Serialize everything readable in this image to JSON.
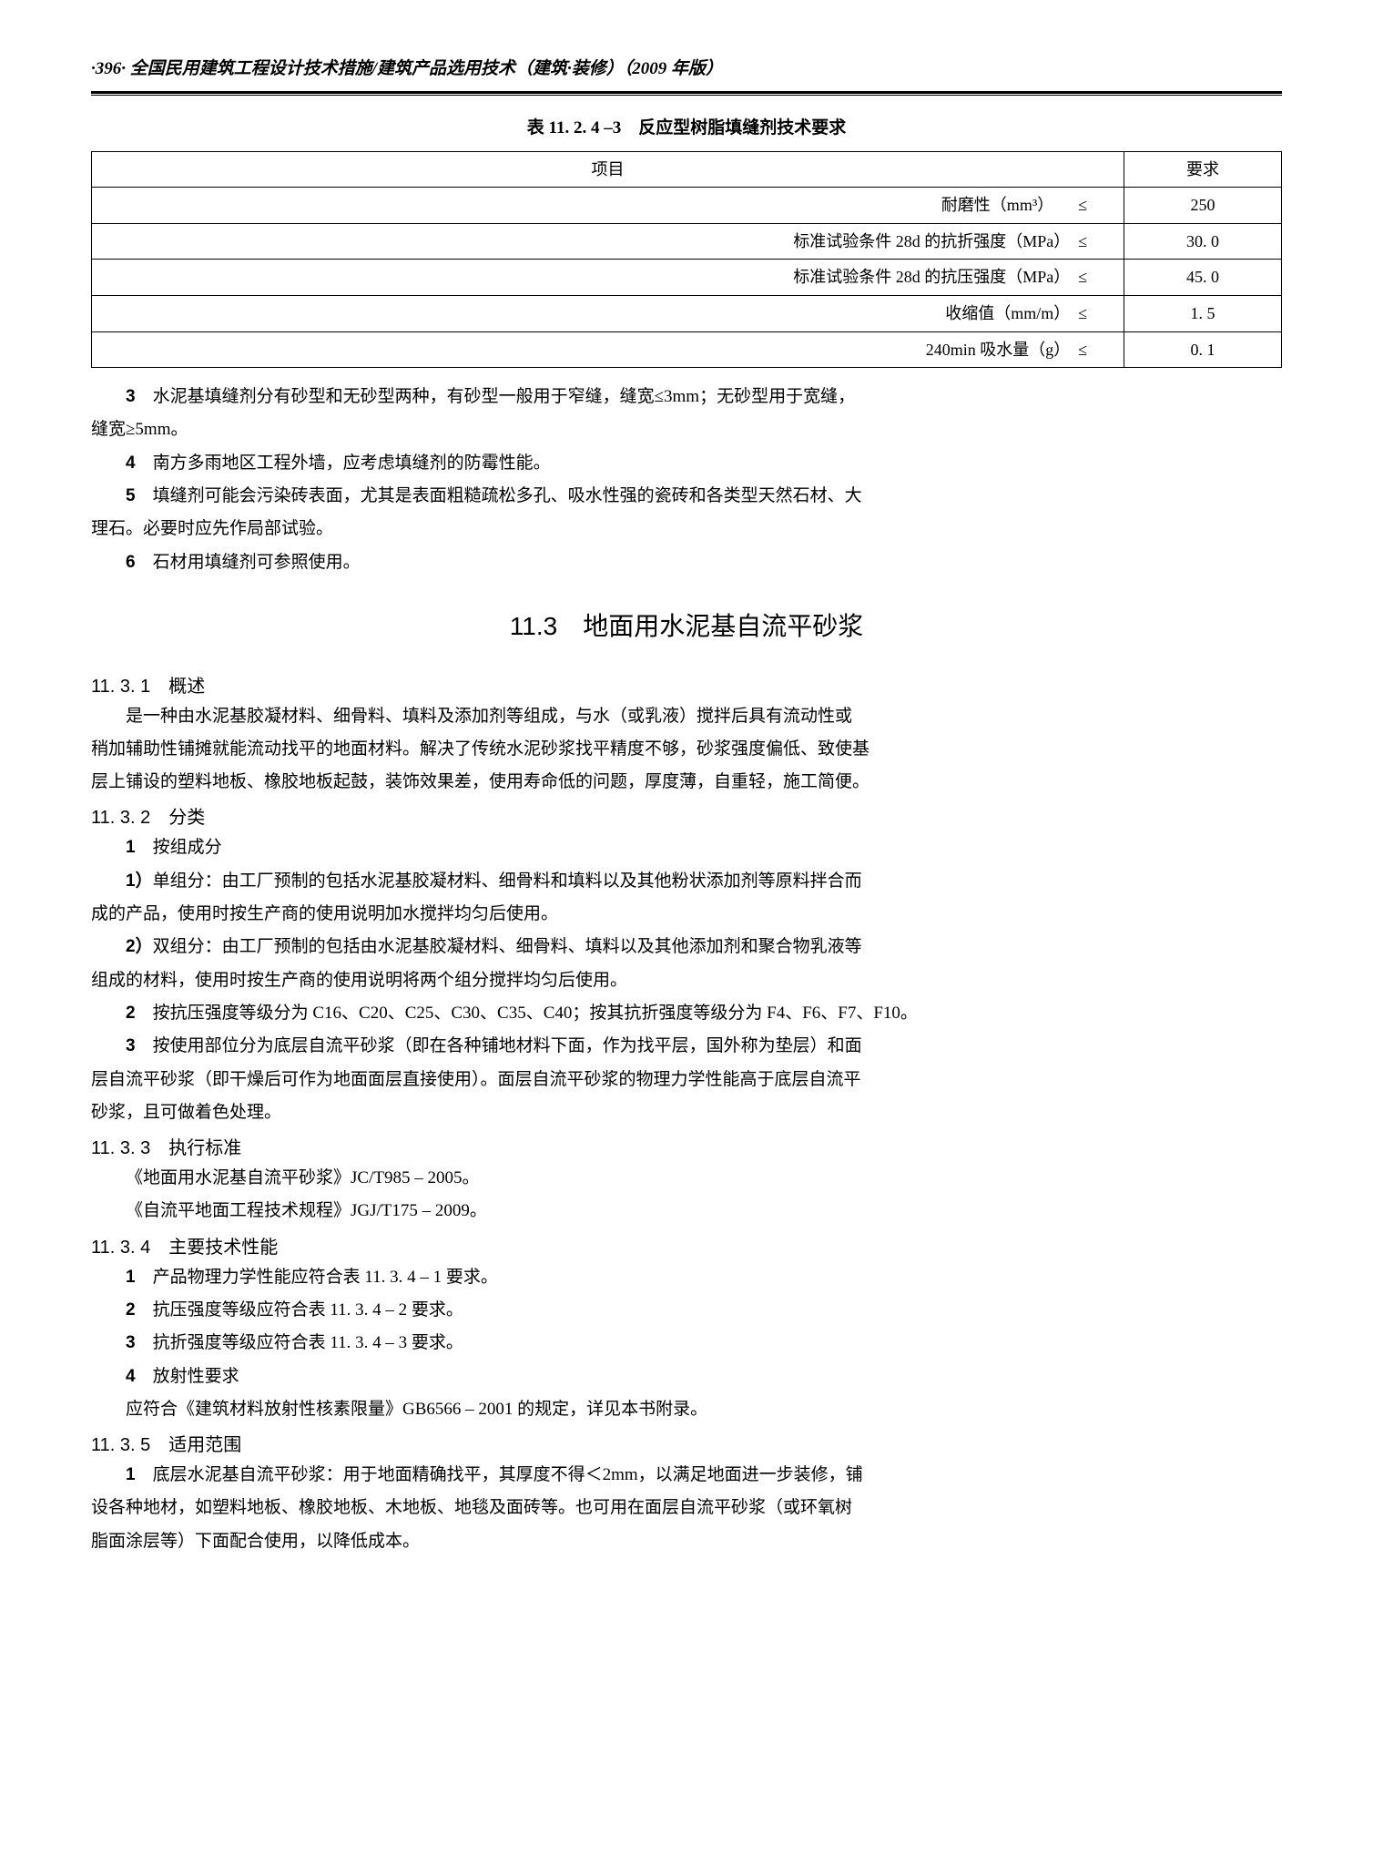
{
  "header": {
    "page_num": "·396·",
    "title": "全国民用建筑工程设计技术措施/建筑产品选用技术（建筑·装修）（2009 年版）"
  },
  "table1": {
    "title": "表 11. 2. 4 –3　反应型树脂填缝剂技术要求",
    "col1": "项目",
    "col2": "要求",
    "rows": [
      {
        "label": "耐磨性（mm³）　　≤",
        "value": "250"
      },
      {
        "label": "标准试验条件 28d 的抗折强度（MPa）　≤",
        "value": "30. 0"
      },
      {
        "label": "标准试验条件 28d 的抗压强度（MPa）　≤",
        "value": "45. 0"
      },
      {
        "label": "收缩值（mm/m）　≤",
        "value": "1. 5"
      },
      {
        "label": "240min 吸水量（g）　≤",
        "value": "0. 1"
      }
    ]
  },
  "paragraphs1": [
    {
      "n": "3",
      "text": "水泥基填缝剂分有砂型和无砂型两种，有砂型一般用于窄缝，缝宽≤3mm；无砂型用于宽缝，"
    },
    {
      "text": "缝宽≥5mm。"
    },
    {
      "n": "4",
      "text": "南方多雨地区工程外墙，应考虑填缝剂的防霉性能。"
    },
    {
      "n": "5",
      "text": "填缝剂可能会污染砖表面，尤其是表面粗糙疏松多孔、吸水性强的瓷砖和各类型天然石材、大"
    },
    {
      "text": "理石。必要时应先作局部试验。"
    },
    {
      "n": "6",
      "text": "石材用填缝剂可参照使用。"
    }
  ],
  "section": {
    "title": "11.3　地面用水泥基自流平砂浆"
  },
  "s1131": {
    "heading": "11. 3. 1　概述",
    "p1": "是一种由水泥基胶凝材料、细骨料、填料及添加剂等组成，与水（或乳液）搅拌后具有流动性或",
    "p2": "稍加辅助性铺摊就能流动找平的地面材料。解决了传统水泥砂浆找平精度不够，砂浆强度偏低、致使基",
    "p3": "层上铺设的塑料地板、橡胶地板起鼓，装饰效果差，使用寿命低的问题，厚度薄，自重轻，施工简便。"
  },
  "s1132": {
    "heading": "11. 3. 2　分类",
    "i1n": "1",
    "i1": "按组成分",
    "i1_1n": "1）",
    "i1_1": "单组分：由工厂预制的包括水泥基胶凝材料、细骨料和填料以及其他粉状添加剂等原料拌合而",
    "i1_1b": "成的产品，使用时按生产商的使用说明加水搅拌均匀后使用。",
    "i1_2n": "2）",
    "i1_2": "双组分：由工厂预制的包括由水泥基胶凝材料、细骨料、填料以及其他添加剂和聚合物乳液等",
    "i1_2b": "组成的材料，使用时按生产商的使用说明将两个组分搅拌均匀后使用。",
    "i2n": "2",
    "i2": "按抗压强度等级分为 C16、C20、C25、C30、C35、C40；按其抗折强度等级分为 F4、F6、F7、F10。",
    "i3n": "3",
    "i3": "按使用部位分为底层自流平砂浆（即在各种铺地材料下面，作为找平层，国外称为垫层）和面",
    "i3b": "层自流平砂浆（即干燥后可作为地面面层直接使用）。面层自流平砂浆的物理力学性能高于底层自流平",
    "i3c": "砂浆，且可做着色处理。"
  },
  "s1133": {
    "heading": "11. 3. 3　执行标准",
    "p1": "《地面用水泥基自流平砂浆》JC/T985 – 2005。",
    "p2": "《自流平地面工程技术规程》JGJ/T175 – 2009。"
  },
  "s1134": {
    "heading": "11. 3. 4　主要技术性能",
    "i1n": "1",
    "i1": "产品物理力学性能应符合表 11. 3. 4 – 1 要求。",
    "i2n": "2",
    "i2": "抗压强度等级应符合表 11. 3. 4 – 2 要求。",
    "i3n": "3",
    "i3": "抗折强度等级应符合表 11. 3. 4 – 3 要求。",
    "i4n": "4",
    "i4": "放射性要求",
    "p5": "应符合《建筑材料放射性核素限量》GB6566 – 2001 的规定，详见本书附录。"
  },
  "s1135": {
    "heading": "11. 3. 5　适用范围",
    "i1n": "1",
    "i1": "底层水泥基自流平砂浆：用于地面精确找平，其厚度不得＜2mm，以满足地面进一步装修，铺",
    "i1b": "设各种地材，如塑料地板、橡胶地板、木地板、地毯及面砖等。也可用在面层自流平砂浆（或环氧树",
    "i1c": "脂面涂层等）下面配合使用，以降低成本。"
  }
}
